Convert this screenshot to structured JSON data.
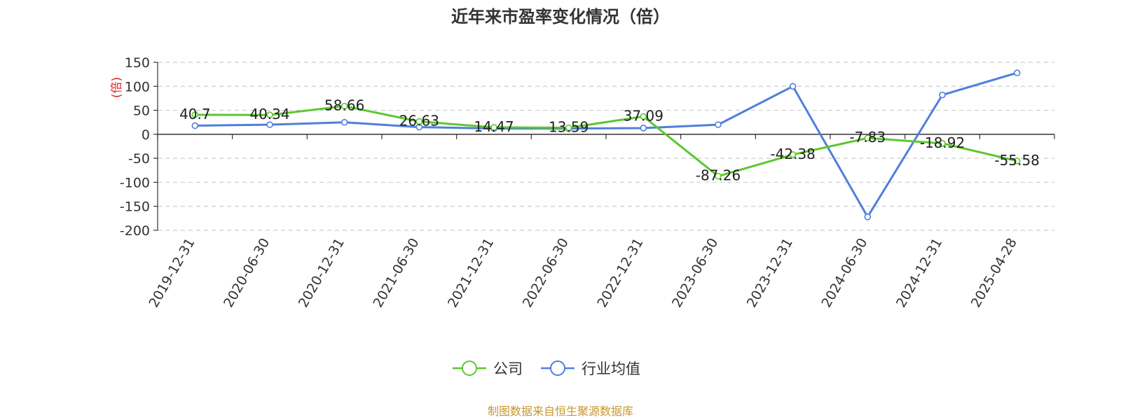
{
  "chart_data": {
    "type": "line",
    "title": "近年来市盈率变化情况（倍）",
    "ylabel": "(倍)",
    "ylim": [
      -200,
      150
    ],
    "yticks": [
      150,
      100,
      50,
      0,
      -50,
      -100,
      -150,
      -200
    ],
    "grid": true,
    "legend_position": "bottom-center",
    "categories": [
      "2019-12-31",
      "2020-06-30",
      "2020-12-31",
      "2021-06-30",
      "2021-12-31",
      "2022-06-30",
      "2022-12-31",
      "2023-06-30",
      "2023-12-31",
      "2024-06-30",
      "2024-12-31",
      "2025-04-28"
    ],
    "series": [
      {
        "name": "公司",
        "color": "#5cc72f",
        "values": [
          40.7,
          40.34,
          58.66,
          26.63,
          14.47,
          13.59,
          37.09,
          -87.26,
          -42.38,
          -7.83,
          -18.92,
          -55.58
        ],
        "labels": [
          "40.7",
          "40.34",
          "58.66",
          "26.63",
          "14.47",
          "13.59",
          "37.09",
          "-87.26",
          "-42.38",
          "-7.83",
          "-18.92",
          "-55.58"
        ]
      },
      {
        "name": "行业均值",
        "color": "#4f7fdc",
        "values": [
          18,
          20,
          25,
          15,
          12,
          12,
          13,
          20,
          100,
          -172,
          82,
          128
        ]
      }
    ]
  },
  "source": {
    "text": "制图数据来自恒生聚源数据库",
    "color": "#c8962e"
  },
  "ylabel_color": "#e02020"
}
